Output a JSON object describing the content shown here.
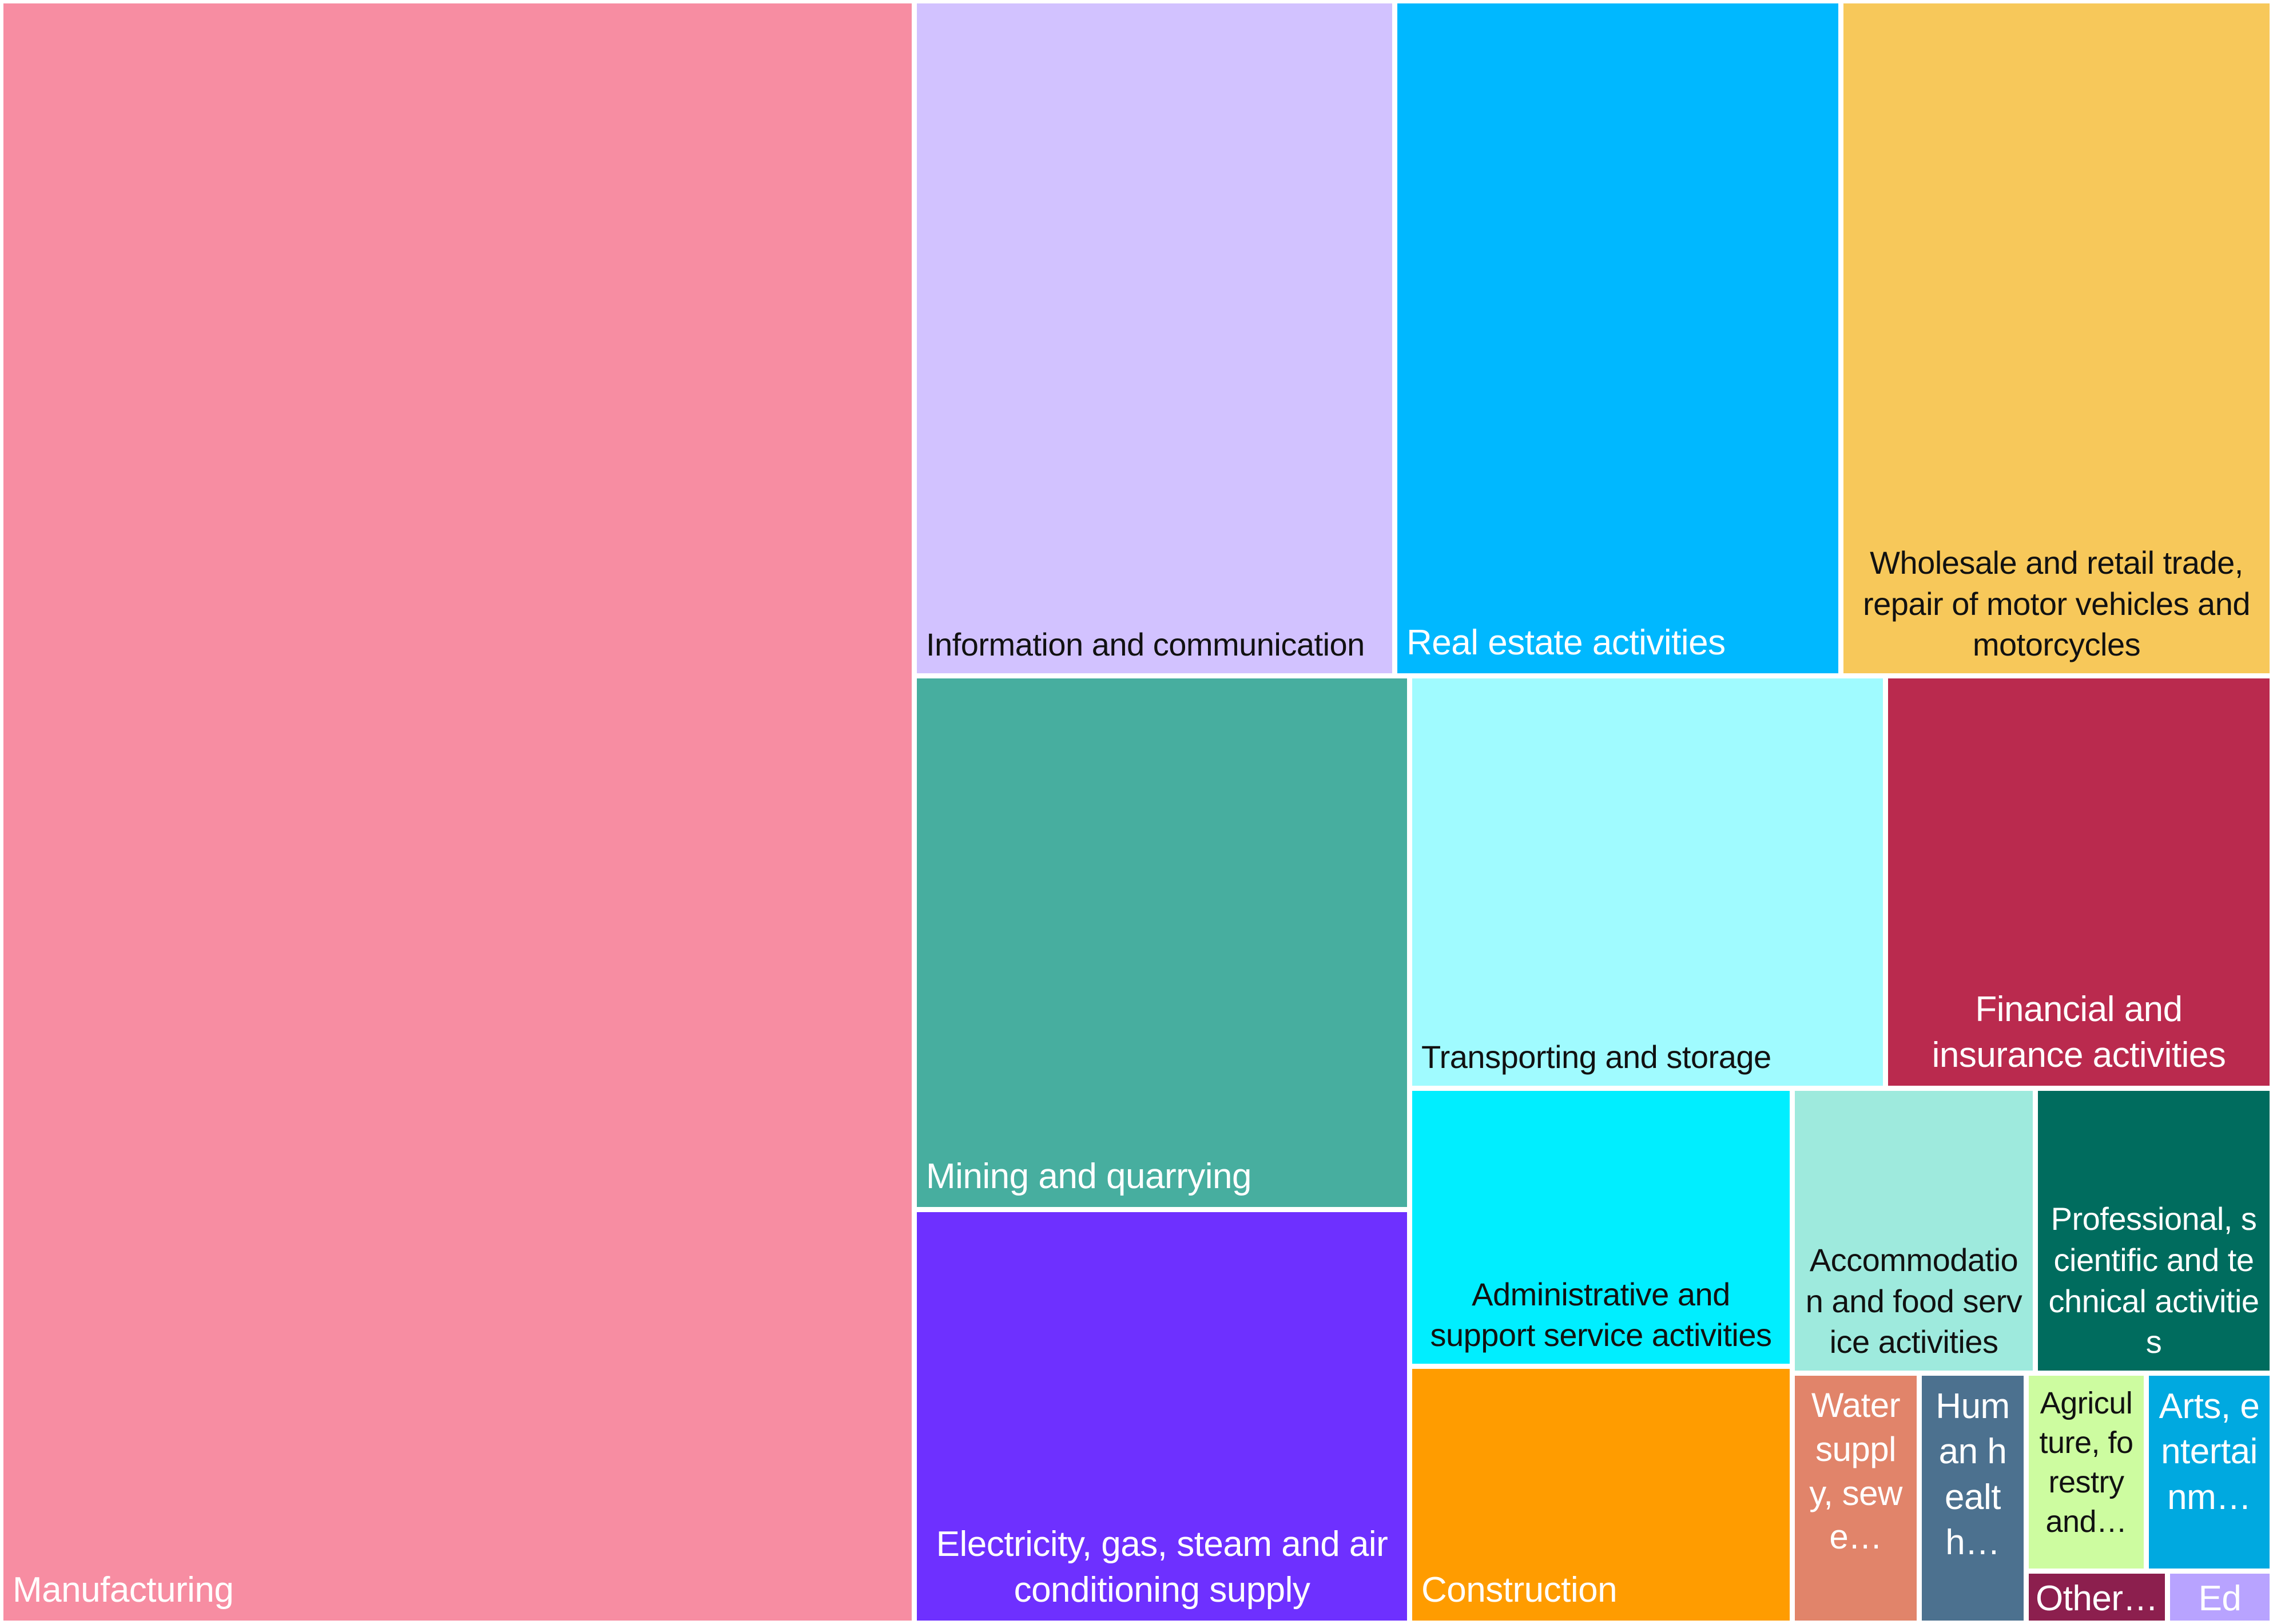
{
  "chart_data": {
    "type": "treemap",
    "items": [
      {
        "label": "Manufacturing",
        "color": "#F78DA2",
        "text_color": "#ffffff"
      },
      {
        "label": "Information and communication",
        "color": "#D2C2FF",
        "text_color": "#111111"
      },
      {
        "label": "Real estate activities",
        "color": "#00B8FF",
        "text_color": "#ffffff"
      },
      {
        "label": "Wholesale and retail trade, repair of motor vehicles and motorcycles",
        "color": "#F7C85A",
        "text_color": "#111111"
      },
      {
        "label": "Mining and quarrying",
        "color": "#47AE9F",
        "text_color": "#ffffff"
      },
      {
        "label": "Electricity, gas, steam and air conditioning supply",
        "color": "#6E30FF",
        "text_color": "#ffffff"
      },
      {
        "label": "Transporting and storage",
        "color": "#A0FBFF",
        "text_color": "#111111"
      },
      {
        "label": "Financial and insurance activities",
        "color": "#BA2A4E",
        "text_color": "#ffffff"
      },
      {
        "label": "Administrative and support service activities",
        "color": "#00EEFF",
        "text_color": "#111111"
      },
      {
        "label": "Construction",
        "color": "#FF9C00",
        "text_color": "#ffffff"
      },
      {
        "label": "Accommodation and food service activities",
        "color": "#9EEADD",
        "text_color": "#111111"
      },
      {
        "label": "Professional, scientific and technical activities",
        "color": "#006C5E",
        "text_color": "#ffffff"
      },
      {
        "label": "Water supply, sewe…",
        "color": "#E1846A",
        "text_color": "#ffffff"
      },
      {
        "label": "Human health…",
        "color": "#4C718F",
        "text_color": "#ffffff"
      },
      {
        "label": "Agriculture, forestry and…",
        "color": "#CDFCA0",
        "text_color": "#111111"
      },
      {
        "label": "Arts, entertainm…",
        "color": "#00A9E0",
        "text_color": "#ffffff"
      },
      {
        "label": "Other…",
        "color": "#8C1F4E",
        "text_color": "#ffffff"
      },
      {
        "label": "Edu…",
        "color": "#B8A3FF",
        "text_color": "#ffffff"
      }
    ]
  }
}
